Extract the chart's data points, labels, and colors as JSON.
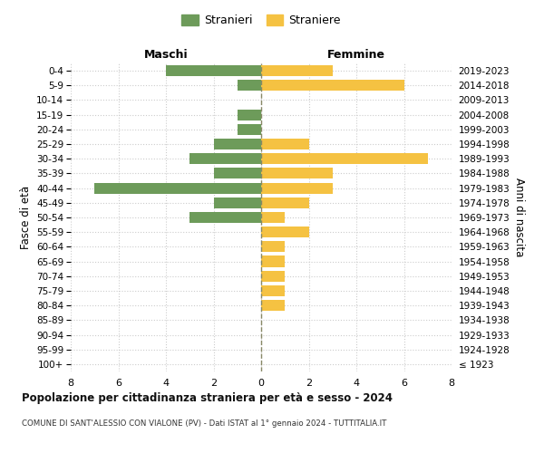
{
  "age_groups": [
    "100+",
    "95-99",
    "90-94",
    "85-89",
    "80-84",
    "75-79",
    "70-74",
    "65-69",
    "60-64",
    "55-59",
    "50-54",
    "45-49",
    "40-44",
    "35-39",
    "30-34",
    "25-29",
    "20-24",
    "15-19",
    "10-14",
    "5-9",
    "0-4"
  ],
  "birth_years": [
    "≤ 1923",
    "1924-1928",
    "1929-1933",
    "1934-1938",
    "1939-1943",
    "1944-1948",
    "1949-1953",
    "1954-1958",
    "1959-1963",
    "1964-1968",
    "1969-1973",
    "1974-1978",
    "1979-1983",
    "1984-1988",
    "1989-1993",
    "1994-1998",
    "1999-2003",
    "2004-2008",
    "2009-2013",
    "2014-2018",
    "2019-2023"
  ],
  "maschi": [
    0,
    0,
    0,
    0,
    0,
    0,
    0,
    0,
    0,
    0,
    3,
    2,
    7,
    2,
    3,
    2,
    1,
    1,
    0,
    1,
    4
  ],
  "femmine": [
    0,
    0,
    0,
    0,
    1,
    1,
    1,
    1,
    1,
    2,
    1,
    2,
    3,
    3,
    7,
    2,
    0,
    0,
    0,
    6,
    3
  ],
  "color_maschi": "#6d9b5a",
  "color_femmine": "#f5c242",
  "title_main": "Popolazione per cittadinanza straniera per età e sesso - 2024",
  "title_sub": "COMUNE DI SANT'ALESSIO CON VIALONE (PV) - Dati ISTAT al 1° gennaio 2024 - TUTTITALIA.IT",
  "label_maschi": "Maschi",
  "label_femmine": "Femmine",
  "legend_stranieri": "Stranieri",
  "legend_straniere": "Straniere",
  "ylabel_left": "Fasce di età",
  "ylabel_right": "Anni di nascita",
  "xlim": 8,
  "background_color": "#ffffff",
  "grid_color": "#cccccc",
  "dashed_line_color": "#888866"
}
